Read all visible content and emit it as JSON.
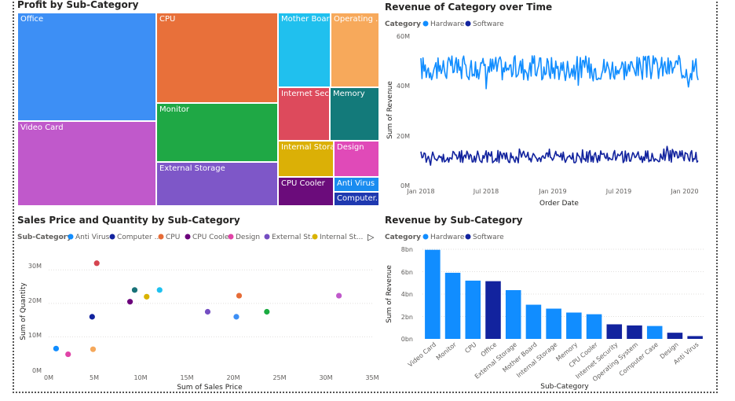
{
  "treemap": {
    "title": "Profit by Sub-Category",
    "cells": [
      {
        "label": "Office",
        "color": "#3d8ff5"
      },
      {
        "label": "Video Card",
        "color": "#c059cb"
      },
      {
        "label": "CPU",
        "color": "#e8703a"
      },
      {
        "label": "Monitor",
        "color": "#1fa845"
      },
      {
        "label": "External Storage",
        "color": "#7e57c8"
      },
      {
        "label": "Mother Board",
        "color": "#20c0ee"
      },
      {
        "label": "Operating ...",
        "color": "#f7a95b"
      },
      {
        "label": "Internet Sec...",
        "color": "#dd4a5c"
      },
      {
        "label": "Memory",
        "color": "#137a7a"
      },
      {
        "label": "Internal Stora...",
        "color": "#dbb006"
      },
      {
        "label": "Design",
        "color": "#e04ab8"
      },
      {
        "label": "CPU Cooler",
        "color": "#6b0c7b"
      },
      {
        "label": "Anti Virus",
        "color": "#1a8cf0"
      },
      {
        "label": "Computer...",
        "color": "#1f39b0"
      }
    ]
  },
  "chart_data": [
    {
      "id": "line",
      "type": "line",
      "title": "Revenue of Category over Time",
      "legend_title": "Category",
      "xlabel": "Order Date",
      "ylabel": "Sum of Revenue",
      "x_ticks": [
        "Jan 2018",
        "Jul 2018",
        "Jan 2019",
        "Jul 2019",
        "Jan 2020"
      ],
      "y_ticks": [
        "0M",
        "20M",
        "40M",
        "60M"
      ],
      "ylim": [
        0,
        60
      ],
      "series": [
        {
          "name": "Hardware",
          "color": "#118dff",
          "base": 47,
          "amp": 5
        },
        {
          "name": "Software",
          "color": "#12239e",
          "base": 11.5,
          "amp": 2.5
        }
      ]
    },
    {
      "id": "scatter",
      "type": "scatter",
      "title": "Sales Price and Quantity by Sub-Category",
      "legend_title": "Sub-Category",
      "legend": [
        {
          "name": "Anti Virus",
          "color": "#118dff"
        },
        {
          "name": "Computer ...",
          "color": "#12239e"
        },
        {
          "name": "CPU",
          "color": "#e66c37"
        },
        {
          "name": "CPU Cooler",
          "color": "#6b007b"
        },
        {
          "name": "Design",
          "color": "#e044a7"
        },
        {
          "name": "External St...",
          "color": "#744ec2"
        },
        {
          "name": "Internal St...",
          "color": "#d9b300"
        }
      ],
      "xlabel": "Sum of Sales Price",
      "ylabel": "Sum of Quantity",
      "x_ticks": [
        "0M",
        "5M",
        "10M",
        "15M",
        "20M",
        "25M",
        "30M",
        "35M"
      ],
      "y_ticks": [
        "0M",
        "10M",
        "20M",
        "30M"
      ],
      "xlim": [
        0,
        35
      ],
      "ylim": [
        0,
        35
      ],
      "points": [
        {
          "x": 0.8,
          "y": 6.5,
          "color": "#118dff"
        },
        {
          "x": 2.1,
          "y": 4.8,
          "color": "#e044a7"
        },
        {
          "x": 4.8,
          "y": 6.3,
          "color": "#f5a85b"
        },
        {
          "x": 4.7,
          "y": 16,
          "color": "#12239e"
        },
        {
          "x": 5.2,
          "y": 32,
          "color": "#d64550"
        },
        {
          "x": 8.8,
          "y": 20.5,
          "color": "#6b007b"
        },
        {
          "x": 9.3,
          "y": 24,
          "color": "#197278"
        },
        {
          "x": 10.6,
          "y": 22,
          "color": "#d9b300"
        },
        {
          "x": 12.0,
          "y": 24,
          "color": "#1ec1f0"
        },
        {
          "x": 17.2,
          "y": 17.5,
          "color": "#744ec2"
        },
        {
          "x": 20.3,
          "y": 16,
          "color": "#3d8ff5"
        },
        {
          "x": 20.6,
          "y": 22.3,
          "color": "#e66c37"
        },
        {
          "x": 23.6,
          "y": 17.5,
          "color": "#1aab40"
        },
        {
          "x": 31.4,
          "y": 22.3,
          "color": "#c059cb"
        }
      ]
    },
    {
      "id": "bar",
      "type": "bar",
      "title": "Revenue by Sub-Category",
      "legend_title": "Category",
      "legend": [
        {
          "name": "Hardware",
          "color": "#118dff"
        },
        {
          "name": "Software",
          "color": "#12239e"
        }
      ],
      "xlabel": "Sub-Category",
      "ylabel": "Sum of Revenue",
      "y_ticks": [
        "0bn",
        "2bn",
        "4bn",
        "6bn",
        "8bn"
      ],
      "ylim": [
        0,
        8
      ],
      "categories": [
        "Video Card",
        "Monitor",
        "CPU",
        "Office",
        "External Storage",
        "Mother Board",
        "Internal Storage",
        "Memory",
        "CPU Cooler",
        "Internet Security",
        "Operating System",
        "Computer Case",
        "Design",
        "Anti Virus"
      ],
      "values": [
        7.95,
        5.9,
        5.2,
        5.15,
        4.35,
        3.05,
        2.7,
        2.35,
        2.2,
        1.3,
        1.2,
        1.15,
        0.55,
        0.25
      ],
      "category_of": [
        "Hardware",
        "Hardware",
        "Hardware",
        "Software",
        "Hardware",
        "Hardware",
        "Hardware",
        "Hardware",
        "Hardware",
        "Software",
        "Software",
        "Hardware",
        "Software",
        "Software"
      ]
    }
  ]
}
